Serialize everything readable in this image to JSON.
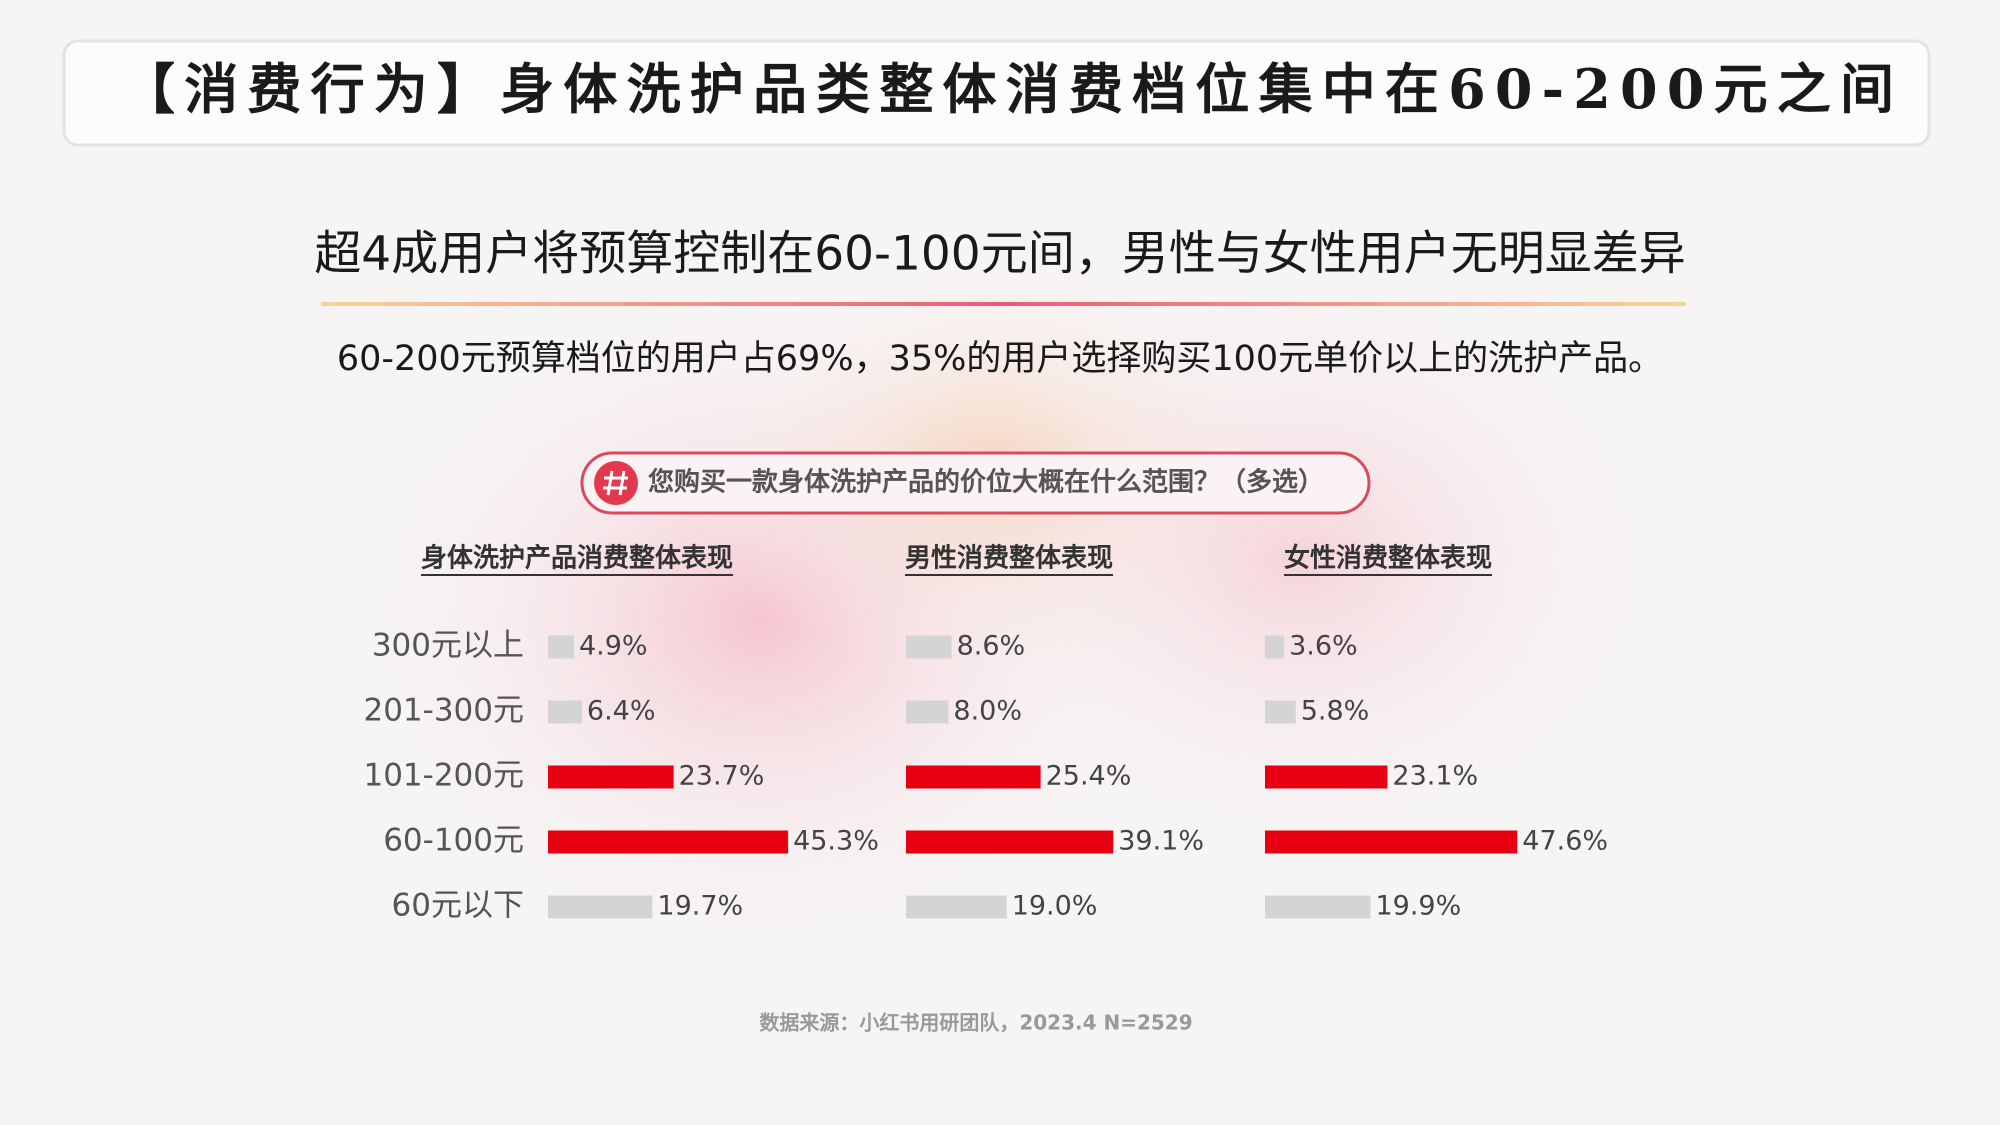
{
  "header": {
    "title": "【消费行为】身体洗护品类整体消费档位集中在60-200元之间"
  },
  "subtitle": "超4成用户将预算控制在60-100元间，男性与女性用户无明显差异",
  "description": "60-200元预算档位的用户占69%，35%的用户选择购买100元单价以上的洗护产品。",
  "question": "您购买一款身体洗护产品的价位大概在什么范围？（多选）",
  "source": "数据来源：小红书用研团队，2023.4 N=2529",
  "chart_data": [
    {
      "type": "bar",
      "orientation": "horizontal",
      "title": "身体洗护产品消费整体表现",
      "categories": [
        "300元以上",
        "201-300元",
        "101-200元",
        "60-100元",
        "60元以下"
      ],
      "values": [
        4.9,
        6.4,
        23.7,
        45.3,
        19.7
      ],
      "value_labels": [
        "4.9%",
        "6.4%",
        "23.7%",
        "45.3%",
        "19.7%"
      ],
      "colors": [
        "#d4d4d4",
        "#d4d4d4",
        "#e60012",
        "#e60012",
        "#d4d4d4"
      ]
    },
    {
      "type": "bar",
      "orientation": "horizontal",
      "title": "男性消费整体表现",
      "values": [
        8.6,
        8.0,
        25.4,
        39.1,
        19.0
      ],
      "value_labels": [
        "8.6%",
        "8.0%",
        "25.4%",
        "39.1%",
        "19.0%"
      ],
      "colors": [
        "#d4d4d4",
        "#d4d4d4",
        "#e60012",
        "#e60012",
        "#d4d4d4"
      ]
    },
    {
      "type": "bar",
      "orientation": "horizontal",
      "title": "女性消费整体表现",
      "values": [
        3.6,
        5.8,
        23.1,
        47.6,
        19.9
      ],
      "value_labels": [
        "3.6%",
        "5.8%",
        "23.1%",
        "47.6%",
        "19.9%"
      ],
      "colors": [
        "#d4d4d4",
        "#d4d4d4",
        "#e60012",
        "#e60012",
        "#d4d4d4"
      ]
    }
  ]
}
